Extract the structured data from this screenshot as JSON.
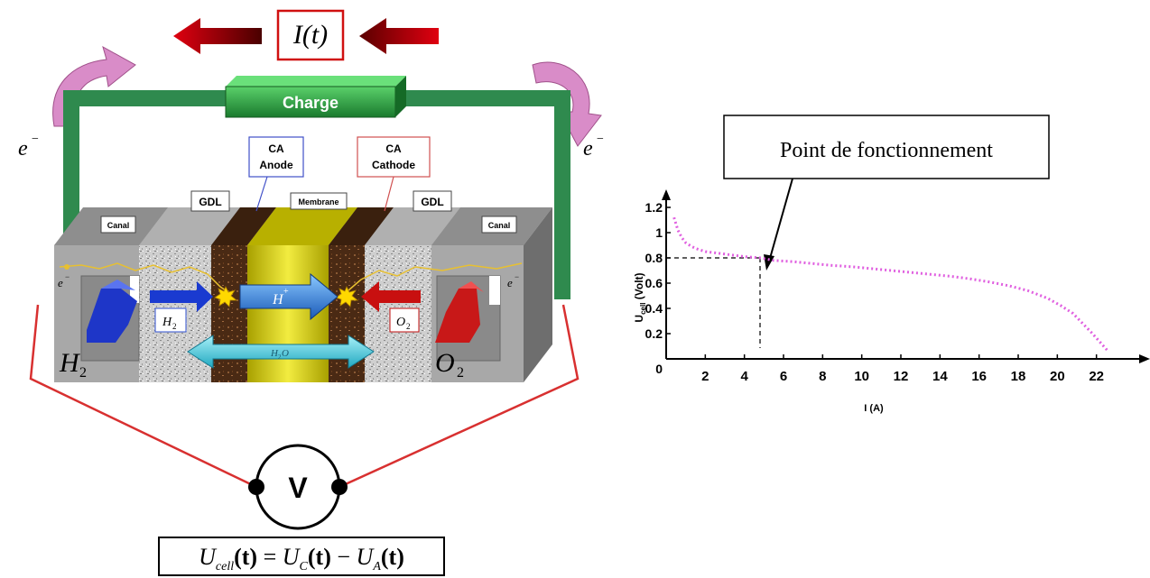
{
  "diagram": {
    "current_label": "I(t)",
    "charge_label": "Charge",
    "electron_label": "e",
    "electron_superscript": "−",
    "ca_anode_line1": "CA",
    "ca_anode_line2": "Anode",
    "ca_cathode_line1": "CA",
    "ca_cathode_line2": "Cathode",
    "gdl_left": "GDL",
    "gdl_right": "GDL",
    "membrane_label": "Membrane",
    "canal_left": "Canal",
    "canal_right": "Canal",
    "h2_gas": "H",
    "h2_sub": "2",
    "o2_gas": "O",
    "o2_sub": "2",
    "h2_flow": "H",
    "h2_flow_sub": "2",
    "o2_flow": "O",
    "o2_flow_sub": "2",
    "proton_label": "H",
    "proton_sup": "+",
    "water_label": "H",
    "water_sub": "2",
    "water_o": "O",
    "voltmeter_label": "V",
    "equation": {
      "lhs_u": "U",
      "lhs_sub": "cell",
      "lhs_arg": "(t)",
      "eq": " = ",
      "c_u": "U",
      "c_sub": "C",
      "c_arg": "(t)",
      "minus": " − ",
      "a_u": "U",
      "a_sub": "A",
      "a_arg": "(t)"
    },
    "colors": {
      "arrow_red": "#c0000b",
      "charge_green": "#2a9a3e",
      "wire_green": "#2f8a4e",
      "bend_arrow_pink": "#d98cc8",
      "membrane_yellow": "#d9d000",
      "catalyst_brown": "#4a2a14",
      "h2_blue": "#1e36c8",
      "o2_red": "#c81818",
      "proton_blue": "#2a7ad8",
      "water_cyan": "#38c8d8",
      "lead_red": "#d83030"
    }
  },
  "annotation": {
    "operating_point_label": "Point de fonctionnement"
  },
  "chart_data": {
    "type": "line",
    "xlabel": "I (A)",
    "ylabel": "U",
    "ylabel_sub": "cell",
    "ylabel_unit": " (Volt)",
    "xlim": [
      0,
      24
    ],
    "ylim": [
      0,
      1.3
    ],
    "x_ticks": [
      "2",
      "4",
      "6",
      "8",
      "10",
      "12",
      "14",
      "16",
      "18",
      "20",
      "22"
    ],
    "x_tick_values": [
      2,
      4,
      6,
      8,
      10,
      12,
      14,
      16,
      18,
      20,
      22
    ],
    "y_ticks": [
      "0",
      "0.2",
      "0.4",
      "0.6",
      "0.8",
      "1",
      "1.2"
    ],
    "y_tick_values": [
      0,
      0.2,
      0.4,
      0.6,
      0.8,
      1.0,
      1.2
    ],
    "series": [
      {
        "color": "#e060e0",
        "x": [
          0.4,
          0.6,
          0.8,
          1.0,
          1.3,
          1.6,
          2.0,
          2.5,
          3.0,
          3.5,
          4.0,
          4.8,
          5.5,
          6.5,
          7.5,
          8.5,
          9.5,
          10.5,
          11.5,
          12.5,
          13.5,
          14.5,
          15.5,
          16.5,
          17.5,
          18.5,
          19.5,
          20.2,
          20.8,
          21.3,
          21.8,
          22.2,
          22.6
        ],
        "y": [
          1.12,
          1.02,
          0.96,
          0.92,
          0.89,
          0.87,
          0.85,
          0.84,
          0.83,
          0.82,
          0.81,
          0.8,
          0.78,
          0.77,
          0.755,
          0.74,
          0.73,
          0.715,
          0.7,
          0.685,
          0.67,
          0.655,
          0.635,
          0.61,
          0.58,
          0.54,
          0.48,
          0.42,
          0.36,
          0.28,
          0.2,
          0.13,
          0.06
        ]
      }
    ],
    "operating_point": {
      "x": 4.8,
      "y": 0.8
    }
  }
}
